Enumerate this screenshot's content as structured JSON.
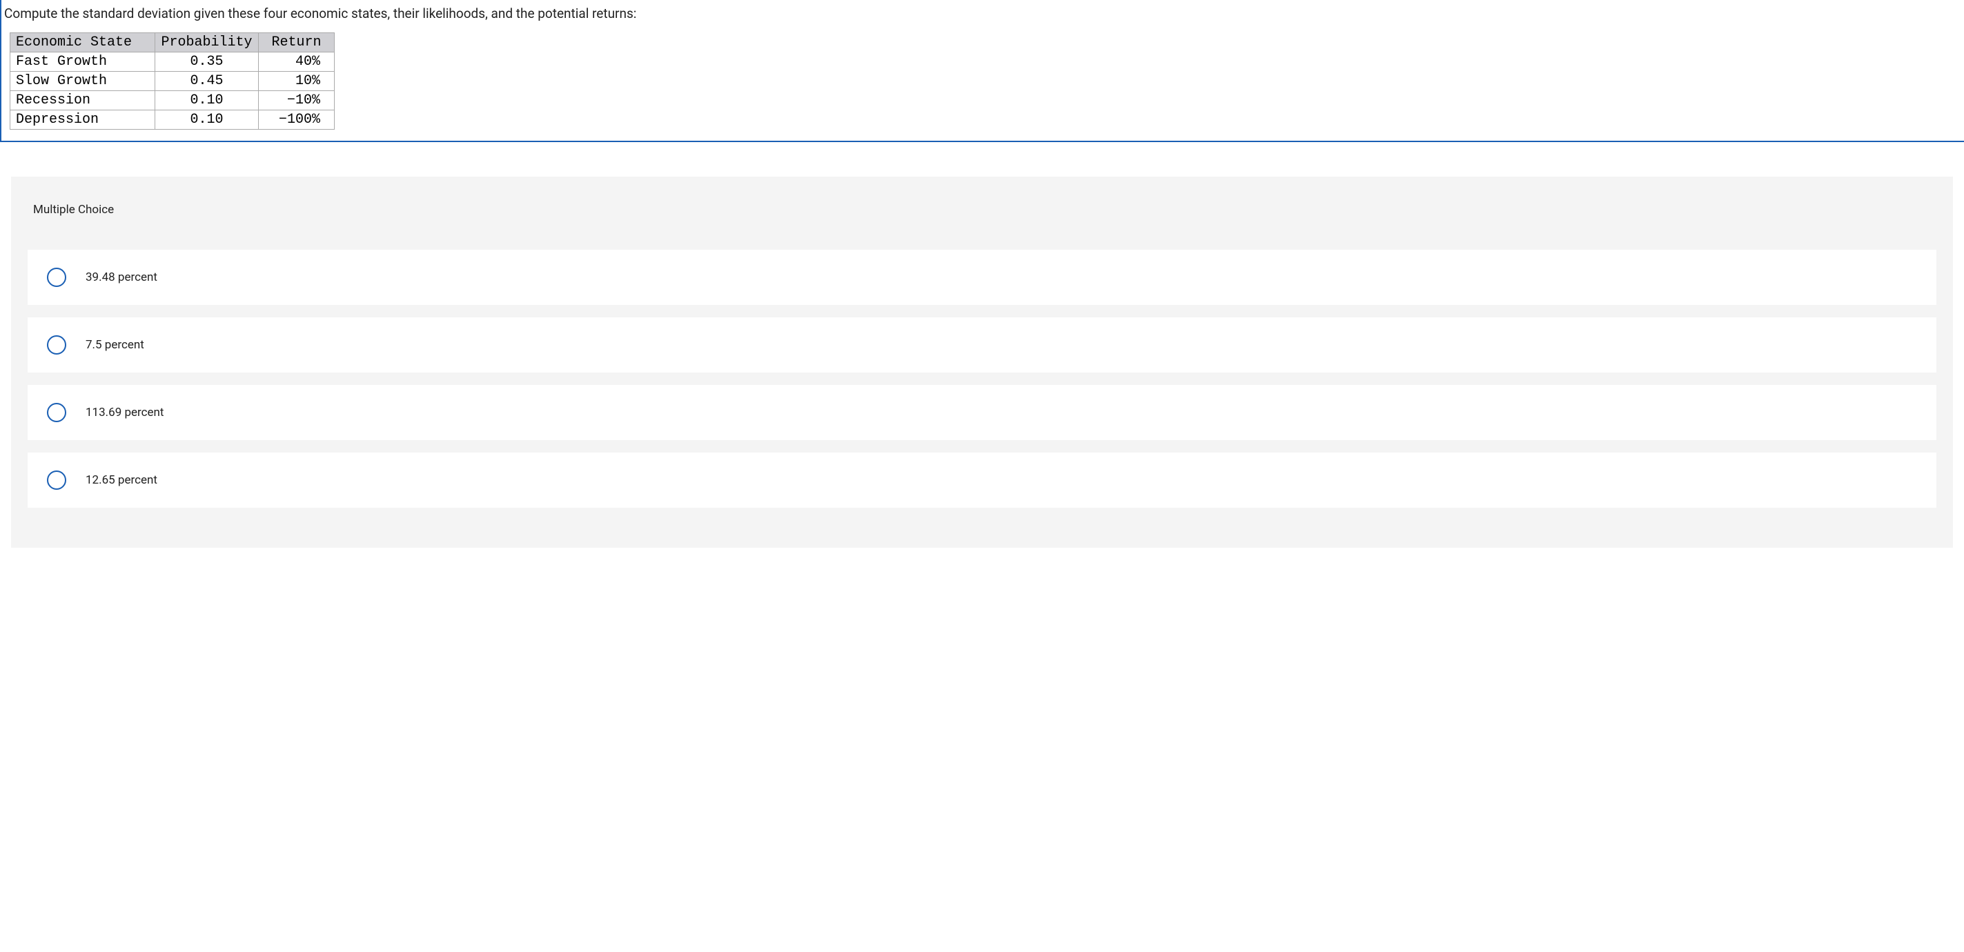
{
  "question": {
    "prompt": "Compute the standard deviation given these four economic states, their likelihoods, and the potential returns:",
    "table": {
      "headers": {
        "state": "Economic State",
        "probability": "Probability",
        "return": "Return"
      },
      "rows": [
        {
          "state": "Fast Growth",
          "probability": "0.35",
          "return": "40%"
        },
        {
          "state": "Slow Growth",
          "probability": "0.45",
          "return": "10%"
        },
        {
          "state": "Recession",
          "probability": "0.10",
          "return": "−10%"
        },
        {
          "state": "Depression",
          "probability": "0.10",
          "return": "−100%"
        }
      ]
    }
  },
  "answers": {
    "label": "Multiple Choice",
    "choices": [
      {
        "text": "39.48 percent"
      },
      {
        "text": "7.5 percent"
      },
      {
        "text": "113.69 percent"
      },
      {
        "text": "12.65 percent"
      }
    ]
  },
  "colors": {
    "border_blue": "#1a5fb4",
    "header_gray": "#d0d0d4",
    "panel_gray": "#f4f4f4",
    "white": "#ffffff"
  }
}
